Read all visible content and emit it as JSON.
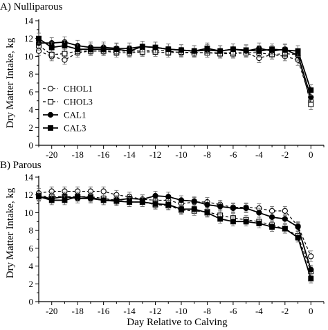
{
  "chart_data": [
    {
      "type": "line",
      "title": "A) Nulliparous",
      "xlabel": "",
      "ylabel": "Dry Matter Intake, kg",
      "xlim": [
        -21,
        1
      ],
      "ylim": [
        0,
        14
      ],
      "xticks": [
        -20,
        -18,
        -16,
        -14,
        -12,
        -10,
        -8,
        -6,
        -4,
        -2,
        0
      ],
      "yticks": [
        0,
        2,
        4,
        6,
        8,
        10,
        12,
        14
      ],
      "grid": false,
      "legend": "bottom-left",
      "x": [
        -21,
        -20,
        -19,
        -18,
        -17,
        -16,
        -15,
        -14,
        -13,
        -12,
        -11,
        -10,
        -9,
        -8,
        -7,
        -6,
        -5,
        -4,
        -3,
        -2,
        -1,
        0
      ],
      "series": [
        {
          "name": "CHOL1",
          "marker": "open-circle",
          "dash": "dash",
          "values": [
            10.6,
            10.0,
            9.6,
            10.4,
            10.6,
            10.6,
            10.6,
            10.6,
            10.6,
            10.7,
            10.6,
            10.4,
            10.4,
            10.4,
            10.4,
            10.4,
            10.4,
            9.8,
            10.2,
            10.0,
            9.6,
            5.0
          ],
          "error": [
            0.5,
            0.5,
            0.5,
            0.5,
            0.5,
            0.5,
            0.5,
            0.5,
            0.5,
            0.5,
            0.5,
            0.5,
            0.5,
            0.5,
            0.5,
            0.5,
            0.5,
            0.5,
            0.5,
            0.5,
            0.6,
            0.6
          ]
        },
        {
          "name": "CHOL3",
          "marker": "open-square",
          "dash": "dash",
          "values": [
            11.2,
            10.2,
            10.3,
            10.6,
            10.6,
            10.6,
            10.4,
            10.4,
            10.5,
            10.5,
            10.4,
            10.5,
            10.4,
            10.4,
            10.3,
            10.3,
            10.4,
            10.4,
            10.2,
            10.3,
            10.2,
            4.6
          ],
          "error": [
            0.5,
            0.5,
            0.5,
            0.5,
            0.5,
            0.5,
            0.5,
            0.5,
            0.5,
            0.5,
            0.5,
            0.5,
            0.5,
            0.5,
            0.5,
            0.5,
            0.5,
            0.5,
            0.5,
            0.5,
            0.5,
            0.6
          ]
        },
        {
          "name": "CAL1",
          "marker": "filled-circle",
          "dash": "solid",
          "values": [
            11.5,
            11.5,
            11.6,
            11.2,
            11.0,
            11.0,
            10.9,
            10.9,
            11.1,
            11.0,
            10.8,
            10.7,
            10.6,
            10.7,
            10.6,
            10.8,
            10.6,
            10.9,
            10.6,
            10.8,
            10.1,
            5.4
          ],
          "error": [
            0.6,
            0.6,
            0.6,
            0.6,
            0.6,
            0.6,
            0.6,
            0.6,
            0.6,
            0.6,
            0.6,
            0.6,
            0.6,
            0.6,
            0.6,
            0.6,
            0.6,
            0.6,
            0.6,
            0.6,
            0.6,
            0.6
          ]
        },
        {
          "name": "CAL3",
          "marker": "filled-square",
          "dash": "solid",
          "values": [
            12.0,
            11.0,
            11.2,
            10.8,
            10.8,
            10.8,
            10.8,
            10.6,
            11.1,
            11.0,
            10.8,
            10.7,
            10.6,
            10.9,
            10.6,
            10.8,
            10.7,
            10.6,
            10.8,
            10.7,
            10.6,
            6.2
          ],
          "error": [
            0.6,
            0.6,
            0.6,
            0.6,
            0.6,
            0.6,
            0.6,
            0.6,
            0.6,
            0.6,
            0.6,
            0.6,
            0.6,
            0.6,
            0.6,
            0.6,
            0.6,
            0.6,
            0.6,
            0.6,
            0.6,
            0.6
          ]
        }
      ]
    },
    {
      "type": "line",
      "title": "B) Parous",
      "xlabel": "Day Relative to Calving",
      "ylabel": "Dry Matter Intake, kg",
      "xlim": [
        -21,
        1
      ],
      "ylim": [
        0,
        14
      ],
      "xticks": [
        -20,
        -18,
        -16,
        -14,
        -12,
        -10,
        -8,
        -6,
        -4,
        -2,
        0
      ],
      "yticks": [
        0,
        2,
        4,
        6,
        8,
        10,
        12,
        14
      ],
      "grid": false,
      "legend": "none",
      "x": [
        -21,
        -20,
        -19,
        -18,
        -17,
        -16,
        -15,
        -14,
        -13,
        -12,
        -11,
        -10,
        -9,
        -8,
        -7,
        -6,
        -5,
        -4,
        -3,
        -2,
        -1,
        0
      ],
      "series": [
        {
          "name": "CHOL1",
          "marker": "open-circle",
          "dash": "dash",
          "values": [
            12.2,
            12.4,
            12.4,
            12.4,
            12.4,
            12.4,
            12.0,
            11.8,
            11.5,
            11.4,
            11.4,
            11.0,
            11.2,
            11.2,
            10.9,
            10.6,
            10.6,
            10.5,
            10.2,
            10.2,
            8.5,
            5.1
          ],
          "error": [
            0.5,
            0.5,
            0.5,
            0.5,
            0.5,
            0.5,
            0.5,
            0.5,
            0.5,
            0.5,
            0.5,
            0.5,
            0.5,
            0.5,
            0.5,
            0.5,
            0.5,
            0.5,
            0.5,
            0.5,
            0.5,
            0.6
          ]
        },
        {
          "name": "CHOL3",
          "marker": "open-square",
          "dash": "dash",
          "values": [
            11.9,
            11.8,
            11.8,
            11.8,
            11.8,
            11.6,
            11.4,
            11.2,
            11.2,
            10.9,
            10.8,
            10.3,
            10.2,
            10.1,
            9.7,
            9.4,
            9.2,
            9.0,
            8.6,
            8.2,
            7.4,
            3.4
          ],
          "error": [
            0.5,
            0.5,
            0.5,
            0.5,
            0.5,
            0.5,
            0.5,
            0.5,
            0.5,
            0.5,
            0.5,
            0.5,
            0.5,
            0.5,
            0.5,
            0.5,
            0.5,
            0.5,
            0.5,
            0.5,
            0.5,
            0.5
          ]
        },
        {
          "name": "CAL1",
          "marker": "filled-circle",
          "dash": "solid",
          "values": [
            11.8,
            11.6,
            11.8,
            11.6,
            11.6,
            11.4,
            11.4,
            11.6,
            11.5,
            11.9,
            11.8,
            11.4,
            11.3,
            10.9,
            10.7,
            10.5,
            10.5,
            10.0,
            9.5,
            9.3,
            8.4,
            3.6
          ],
          "error": [
            0.5,
            0.5,
            0.5,
            0.5,
            0.5,
            0.5,
            0.5,
            0.5,
            0.5,
            0.5,
            0.5,
            0.5,
            0.5,
            0.5,
            0.5,
            0.5,
            0.5,
            0.5,
            0.5,
            0.5,
            0.5,
            0.5
          ]
        },
        {
          "name": "CAL3",
          "marker": "filled-square",
          "dash": "solid",
          "values": [
            11.8,
            11.4,
            11.4,
            11.8,
            11.7,
            11.4,
            11.3,
            11.2,
            11.2,
            11.0,
            10.9,
            10.4,
            10.4,
            10.0,
            9.3,
            9.0,
            9.0,
            8.8,
            8.4,
            8.2,
            7.2,
            2.6
          ],
          "error": [
            0.5,
            0.5,
            0.5,
            0.5,
            0.5,
            0.5,
            0.5,
            0.5,
            0.5,
            0.5,
            0.5,
            0.5,
            0.5,
            0.5,
            0.5,
            0.5,
            0.5,
            0.5,
            0.5,
            0.5,
            0.5,
            0.5
          ]
        }
      ]
    }
  ]
}
